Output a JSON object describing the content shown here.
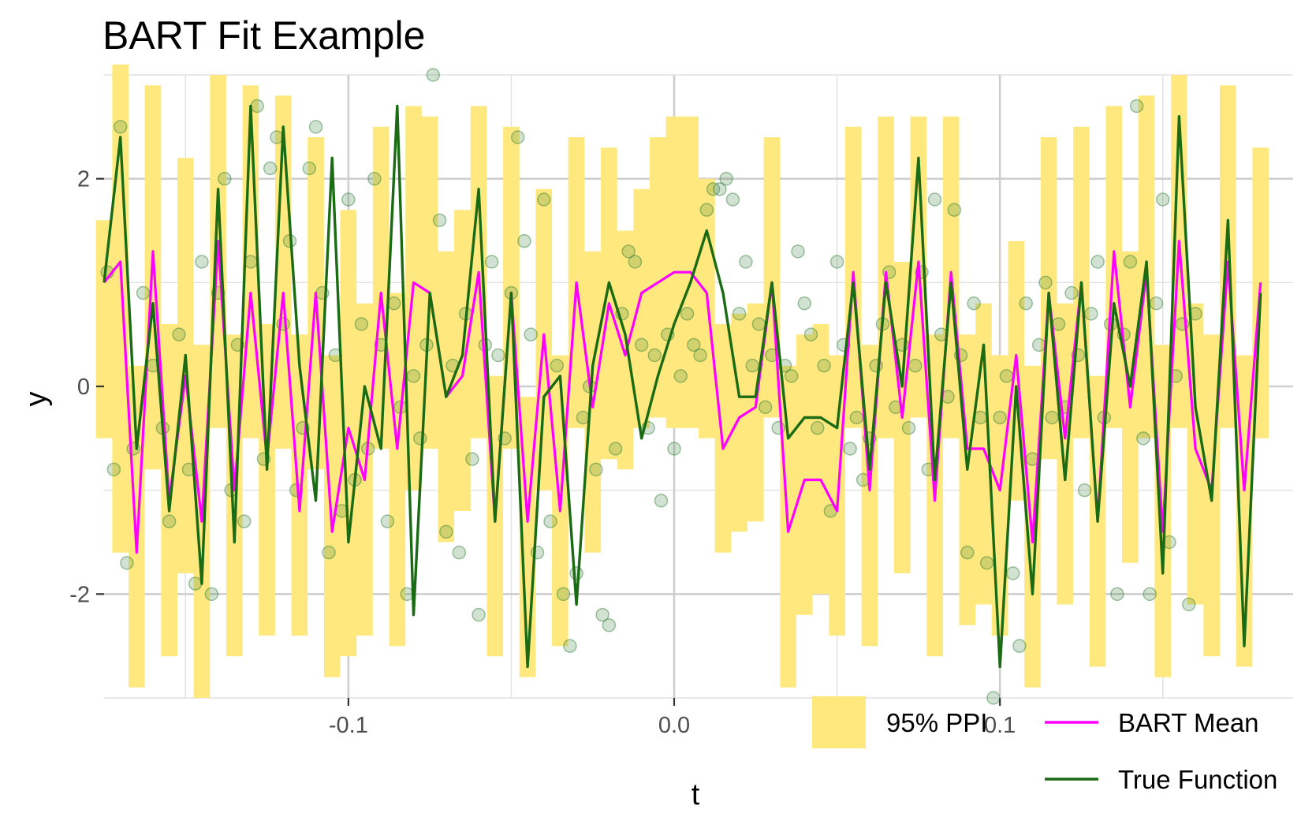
{
  "chart_data": {
    "type": "line",
    "title": "BART Fit Example",
    "xlabel": "t",
    "ylabel": "y",
    "xlim": [
      -0.175,
      0.19
    ],
    "ylim": [
      -3.0,
      3.0
    ],
    "xticks": [
      -0.1,
      0.0,
      0.1
    ],
    "xtick_labels": [
      "-0.1",
      "0.0",
      "0.1"
    ],
    "yticks": [
      -2,
      0,
      2
    ],
    "ytick_labels": [
      "-2",
      "0",
      "2"
    ],
    "grid": true,
    "legend_position": "bottom-right",
    "legend": [
      {
        "label": "95% PPI",
        "kind": "band",
        "color": "#FFE97F"
      },
      {
        "label": "BART Mean",
        "kind": "line",
        "color": "#FF00FF"
      },
      {
        "label": "True Function",
        "kind": "line",
        "color": "#1A6B14"
      }
    ],
    "colors": {
      "band": "#FFE97F",
      "mean": "#FF00FF",
      "truth": "#1A6B14",
      "points": "#2E7D32"
    },
    "x": [
      -0.175,
      -0.17,
      -0.165,
      -0.16,
      -0.155,
      -0.15,
      -0.145,
      -0.14,
      -0.135,
      -0.13,
      -0.125,
      -0.12,
      -0.115,
      -0.11,
      -0.105,
      -0.1,
      -0.095,
      -0.09,
      -0.085,
      -0.08,
      -0.075,
      -0.07,
      -0.065,
      -0.06,
      -0.055,
      -0.05,
      -0.045,
      -0.04,
      -0.035,
      -0.03,
      -0.025,
      -0.02,
      -0.015,
      -0.01,
      -0.005,
      0.0,
      0.005,
      0.01,
      0.015,
      0.02,
      0.025,
      0.03,
      0.035,
      0.04,
      0.045,
      0.05,
      0.055,
      0.06,
      0.065,
      0.07,
      0.075,
      0.08,
      0.085,
      0.09,
      0.095,
      0.1,
      0.105,
      0.11,
      0.115,
      0.12,
      0.125,
      0.13,
      0.135,
      0.14,
      0.145,
      0.15,
      0.155,
      0.16,
      0.165,
      0.17,
      0.175,
      0.18
    ],
    "series": [
      {
        "name": "True Function",
        "values": [
          1.0,
          2.4,
          -0.6,
          0.8,
          -1.2,
          0.3,
          -1.9,
          1.9,
          -1.5,
          2.7,
          -0.8,
          2.5,
          0.2,
          -1.1,
          2.2,
          -1.5,
          0.0,
          -0.6,
          2.7,
          -2.2,
          0.9,
          -0.1,
          0.3,
          1.9,
          -1.3,
          0.9,
          -2.7,
          -0.1,
          0.1,
          -2.1,
          0.2,
          1.0,
          0.5,
          -0.5,
          0.1,
          0.6,
          1.0,
          1.5,
          0.9,
          -0.1,
          -0.1,
          1.0,
          -0.5,
          -0.3,
          -0.3,
          -0.4,
          1.0,
          -0.8,
          1.0,
          0.0,
          2.2,
          -0.9,
          1.0,
          -0.8,
          0.4,
          -2.7,
          0.0,
          -2.0,
          0.9,
          -0.9,
          1.0,
          -1.3,
          0.8,
          0.0,
          1.2,
          -1.8,
          2.6,
          -0.2,
          -1.1,
          1.6,
          -2.5,
          0.9
        ]
      },
      {
        "name": "BART Mean",
        "values": [
          1.0,
          1.2,
          -1.6,
          1.3,
          -1.1,
          0.1,
          -1.3,
          1.4,
          -1.0,
          0.9,
          -0.7,
          0.9,
          -1.2,
          0.9,
          -1.4,
          -0.4,
          -0.9,
          0.9,
          -0.6,
          1.0,
          0.9,
          -0.1,
          0.1,
          1.1,
          -1.3,
          0.9,
          -1.3,
          0.5,
          -1.2,
          1.0,
          -0.2,
          0.8,
          0.3,
          0.9,
          1.0,
          1.1,
          1.1,
          0.9,
          -0.6,
          -0.3,
          -0.2,
          1.0,
          -1.4,
          -0.9,
          -0.9,
          -1.2,
          1.1,
          -1.0,
          1.1,
          -0.3,
          1.2,
          -1.1,
          1.1,
          -0.6,
          -0.6,
          -1.0,
          0.3,
          -1.5,
          0.9,
          -0.5,
          1.0,
          -1.3,
          1.3,
          -0.2,
          1.1,
          -1.4,
          1.4,
          -0.6,
          -1.0,
          1.2,
          -1.0,
          1.0
        ]
      }
    ],
    "band": {
      "name": "95% PPI",
      "lower": [
        -0.5,
        -1.6,
        -2.9,
        -0.8,
        -2.6,
        -1.8,
        -3.0,
        -0.4,
        -2.6,
        -0.5,
        -2.4,
        -0.6,
        -2.4,
        -0.8,
        -2.8,
        -2.6,
        -2.4,
        -0.6,
        -2.5,
        -1.0,
        -0.6,
        -1.5,
        -1.2,
        -0.5,
        -2.6,
        -0.6,
        -2.8,
        -1.0,
        -2.5,
        -0.4,
        -1.6,
        -0.7,
        -0.8,
        -0.4,
        -0.3,
        -0.4,
        -0.4,
        -0.5,
        -1.6,
        -1.4,
        -1.3,
        -0.3,
        -2.9,
        -2.2,
        -2.0,
        -2.4,
        -0.4,
        -2.5,
        -0.5,
        -1.8,
        -0.3,
        -2.6,
        -0.5,
        -2.3,
        -2.1,
        -2.4,
        -1.1,
        -2.9,
        -0.7,
        -2.1,
        -0.5,
        -2.7,
        -0.4,
        -1.7,
        -0.5,
        -2.8,
        -0.4,
        -2.1,
        -2.6,
        -0.4,
        -2.7,
        -0.5
      ],
      "upper": [
        1.6,
        3.1,
        0.2,
        2.9,
        0.6,
        2.2,
        0.4,
        3.0,
        0.5,
        2.9,
        0.6,
        2.8,
        0.5,
        2.4,
        0.3,
        1.7,
        0.8,
        2.5,
        0.9,
        2.7,
        2.6,
        1.3,
        1.7,
        2.7,
        0.1,
        2.5,
        -0.1,
        1.9,
        0.3,
        2.4,
        1.3,
        2.3,
        1.5,
        1.9,
        2.4,
        2.6,
        2.6,
        2.0,
        0.6,
        0.7,
        0.8,
        2.4,
        0.2,
        0.5,
        0.6,
        0.3,
        2.5,
        0.4,
        2.6,
        1.2,
        2.6,
        0.5,
        2.6,
        0.5,
        0.8,
        0.3,
        1.4,
        0.2,
        2.4,
        0.8,
        2.5,
        0.1,
        2.7,
        1.3,
        2.8,
        0.4,
        3.0,
        0.8,
        0.5,
        2.9,
        0.3,
        2.3
      ]
    },
    "points": [
      [
        -0.174,
        1.1
      ],
      [
        -0.172,
        -0.8
      ],
      [
        -0.17,
        2.5
      ],
      [
        -0.168,
        -1.7
      ],
      [
        -0.166,
        -0.6
      ],
      [
        -0.163,
        0.9
      ],
      [
        -0.16,
        0.2
      ],
      [
        -0.157,
        -0.4
      ],
      [
        -0.155,
        -1.3
      ],
      [
        -0.152,
        0.5
      ],
      [
        -0.149,
        -0.8
      ],
      [
        -0.147,
        -1.9
      ],
      [
        -0.145,
        1.2
      ],
      [
        -0.142,
        -2.0
      ],
      [
        -0.14,
        0.9
      ],
      [
        -0.138,
        2.0
      ],
      [
        -0.136,
        -1.0
      ],
      [
        -0.134,
        0.4
      ],
      [
        -0.132,
        -1.3
      ],
      [
        -0.13,
        1.2
      ],
      [
        -0.128,
        2.7
      ],
      [
        -0.126,
        -0.7
      ],
      [
        -0.124,
        2.1
      ],
      [
        -0.122,
        2.4
      ],
      [
        -0.12,
        0.6
      ],
      [
        -0.118,
        1.4
      ],
      [
        -0.116,
        -1.0
      ],
      [
        -0.114,
        -0.4
      ],
      [
        -0.112,
        2.1
      ],
      [
        -0.11,
        2.5
      ],
      [
        -0.108,
        0.9
      ],
      [
        -0.106,
        -1.6
      ],
      [
        -0.104,
        0.3
      ],
      [
        -0.102,
        -1.2
      ],
      [
        -0.1,
        1.8
      ],
      [
        -0.098,
        -0.9
      ],
      [
        -0.096,
        0.6
      ],
      [
        -0.094,
        -0.6
      ],
      [
        -0.092,
        2.0
      ],
      [
        -0.09,
        0.4
      ],
      [
        -0.088,
        -1.3
      ],
      [
        -0.086,
        0.8
      ],
      [
        -0.084,
        -0.2
      ],
      [
        -0.082,
        -2.0
      ],
      [
        -0.08,
        0.1
      ],
      [
        -0.078,
        -0.5
      ],
      [
        -0.076,
        0.4
      ],
      [
        -0.074,
        3.0
      ],
      [
        -0.072,
        1.6
      ],
      [
        -0.07,
        -1.4
      ],
      [
        -0.068,
        0.2
      ],
      [
        -0.066,
        -1.6
      ],
      [
        -0.064,
        0.7
      ],
      [
        -0.062,
        -0.7
      ],
      [
        -0.06,
        -2.2
      ],
      [
        -0.058,
        0.4
      ],
      [
        -0.056,
        1.2
      ],
      [
        -0.054,
        0.3
      ],
      [
        -0.052,
        -0.5
      ],
      [
        -0.05,
        0.9
      ],
      [
        -0.048,
        2.4
      ],
      [
        -0.046,
        1.4
      ],
      [
        -0.044,
        0.5
      ],
      [
        -0.042,
        -1.6
      ],
      [
        -0.04,
        1.8
      ],
      [
        -0.038,
        -1.3
      ],
      [
        -0.036,
        0.2
      ],
      [
        -0.034,
        -2.0
      ],
      [
        -0.032,
        -2.5
      ],
      [
        -0.03,
        -1.8
      ],
      [
        -0.028,
        -0.3
      ],
      [
        -0.026,
        0.0
      ],
      [
        -0.024,
        -0.8
      ],
      [
        -0.022,
        -2.2
      ],
      [
        -0.02,
        -2.3
      ],
      [
        -0.018,
        -0.6
      ],
      [
        -0.016,
        0.7
      ],
      [
        -0.014,
        1.3
      ],
      [
        -0.012,
        1.2
      ],
      [
        -0.01,
        0.4
      ],
      [
        -0.008,
        -0.4
      ],
      [
        -0.006,
        0.3
      ],
      [
        -0.004,
        -1.1
      ],
      [
        -0.002,
        0.5
      ],
      [
        0.0,
        -0.6
      ],
      [
        0.002,
        0.1
      ],
      [
        0.004,
        0.7
      ],
      [
        0.006,
        0.4
      ],
      [
        0.008,
        0.3
      ],
      [
        0.01,
        1.7
      ],
      [
        0.012,
        1.9
      ],
      [
        0.014,
        1.9
      ],
      [
        0.016,
        2.0
      ],
      [
        0.018,
        1.8
      ],
      [
        0.02,
        0.7
      ],
      [
        0.022,
        1.2
      ],
      [
        0.024,
        0.2
      ],
      [
        0.026,
        0.6
      ],
      [
        0.028,
        -0.2
      ],
      [
        0.03,
        0.3
      ],
      [
        0.032,
        -0.4
      ],
      [
        0.034,
        0.2
      ],
      [
        0.036,
        0.1
      ],
      [
        0.038,
        1.3
      ],
      [
        0.04,
        0.8
      ],
      [
        0.042,
        0.5
      ],
      [
        0.044,
        -0.4
      ],
      [
        0.046,
        0.2
      ],
      [
        0.048,
        -1.2
      ],
      [
        0.05,
        1.2
      ],
      [
        0.052,
        0.4
      ],
      [
        0.054,
        -0.6
      ],
      [
        0.056,
        -0.3
      ],
      [
        0.058,
        -0.9
      ],
      [
        0.06,
        -0.5
      ],
      [
        0.062,
        0.2
      ],
      [
        0.064,
        0.6
      ],
      [
        0.066,
        1.1
      ],
      [
        0.068,
        -0.2
      ],
      [
        0.07,
        0.4
      ],
      [
        0.072,
        -0.4
      ],
      [
        0.074,
        0.2
      ],
      [
        0.076,
        1.1
      ],
      [
        0.078,
        -0.8
      ],
      [
        0.08,
        1.8
      ],
      [
        0.082,
        0.5
      ],
      [
        0.084,
        -0.1
      ],
      [
        0.086,
        1.7
      ],
      [
        0.088,
        0.3
      ],
      [
        0.09,
        -1.6
      ],
      [
        0.092,
        0.8
      ],
      [
        0.094,
        -0.3
      ],
      [
        0.096,
        -1.7
      ],
      [
        0.098,
        -3.0
      ],
      [
        0.1,
        -0.3
      ],
      [
        0.102,
        0.1
      ],
      [
        0.104,
        -1.8
      ],
      [
        0.106,
        -2.5
      ],
      [
        0.108,
        0.8
      ],
      [
        0.11,
        -0.7
      ],
      [
        0.112,
        0.4
      ],
      [
        0.114,
        1.0
      ],
      [
        0.116,
        -0.3
      ],
      [
        0.118,
        0.6
      ],
      [
        0.12,
        -0.2
      ],
      [
        0.122,
        0.9
      ],
      [
        0.124,
        0.3
      ],
      [
        0.126,
        -1.0
      ],
      [
        0.128,
        0.7
      ],
      [
        0.13,
        1.2
      ],
      [
        0.132,
        -0.3
      ],
      [
        0.134,
        0.6
      ],
      [
        0.136,
        -2.0
      ],
      [
        0.138,
        0.5
      ],
      [
        0.14,
        1.2
      ],
      [
        0.142,
        2.7
      ],
      [
        0.144,
        -0.5
      ],
      [
        0.146,
        -2.0
      ],
      [
        0.148,
        0.8
      ],
      [
        0.15,
        1.8
      ],
      [
        0.152,
        -1.5
      ],
      [
        0.154,
        0.1
      ],
      [
        0.156,
        0.6
      ],
      [
        0.158,
        -2.1
      ],
      [
        0.16,
        0.7
      ]
    ]
  }
}
